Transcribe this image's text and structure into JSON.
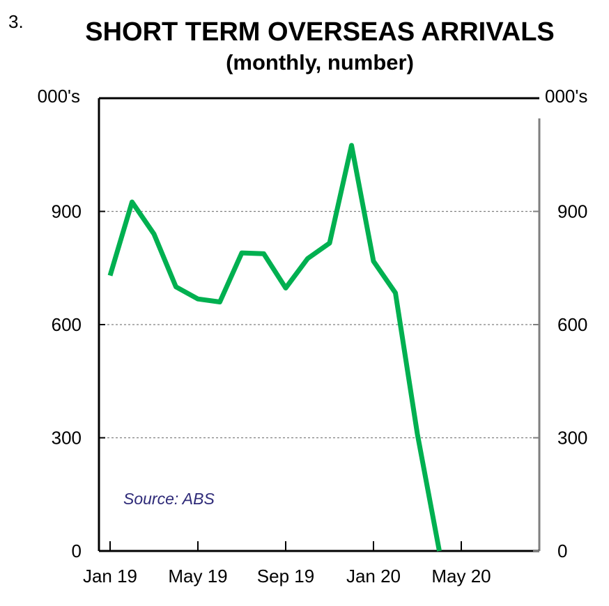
{
  "chart_number": "3.",
  "chart_data": {
    "type": "line",
    "title": "SHORT TERM OVERSEAS ARRIVALS",
    "subtitle": "(monthly, number)",
    "left_unit": "000's",
    "right_unit": "000's",
    "source": "Source: ABS",
    "ylim": [
      0,
      1200
    ],
    "yticks": [
      0,
      300,
      600,
      900
    ],
    "ytick_labels": [
      "0",
      "300",
      "600",
      "900"
    ],
    "grid": true,
    "xlim_months": [
      0,
      19.5
    ],
    "xticks": [
      {
        "month": 0,
        "label": "Jan 19"
      },
      {
        "month": 4,
        "label": "May 19"
      },
      {
        "month": 8,
        "label": "Sep 19"
      },
      {
        "month": 12,
        "label": "Jan 20"
      },
      {
        "month": 16,
        "label": "May 20"
      }
    ],
    "series": [
      {
        "name": "Short term overseas arrivals",
        "color": "#00b050",
        "x": [
          "Jan 19",
          "Feb 19",
          "Mar 19",
          "Apr 19",
          "May 19",
          "Jun 19",
          "Jul 19",
          "Aug 19",
          "Sep 19",
          "Oct 19",
          "Nov 19",
          "Dec 19",
          "Jan 20",
          "Feb 20",
          "Mar 20",
          "Apr 20"
        ],
        "values": [
          730,
          925,
          840,
          700,
          668,
          660,
          790,
          788,
          697,
          775,
          816,
          1075,
          768,
          684,
          310,
          0
        ]
      }
    ]
  },
  "colors": {
    "axis": "#000000",
    "right_axis": "#7f7f7f",
    "grid": "#7f7f7f",
    "line": "#00b050",
    "source": "#2e2a78"
  }
}
